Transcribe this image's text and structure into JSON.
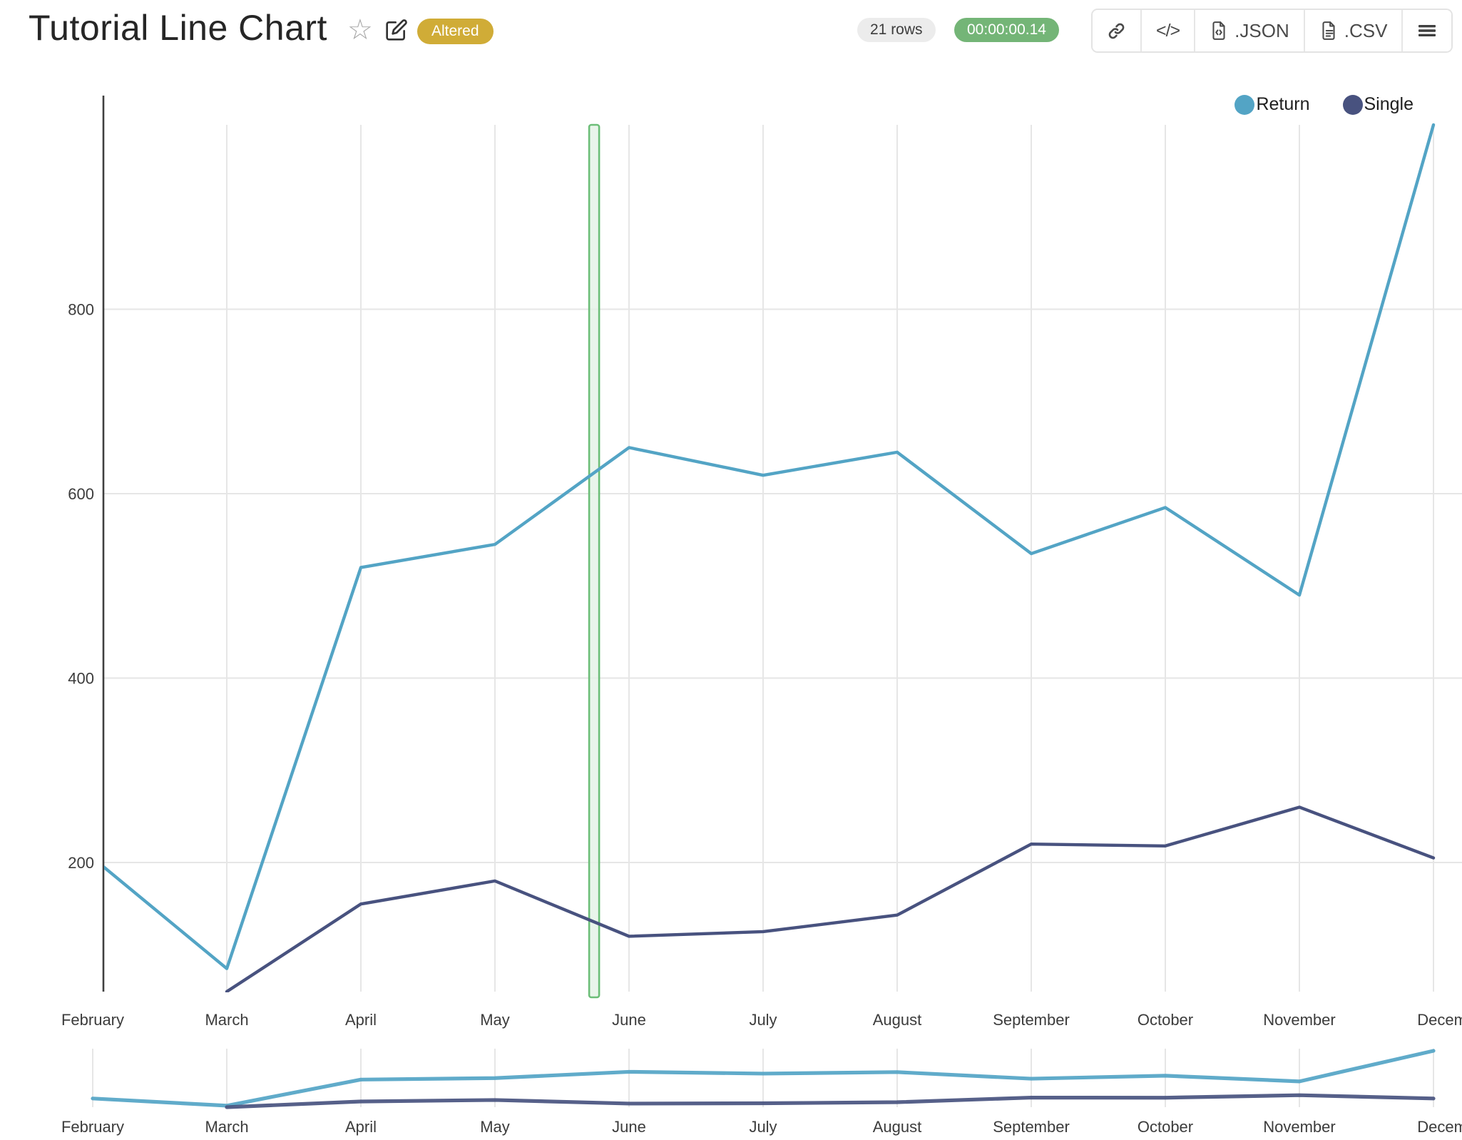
{
  "header": {
    "title": "Tutorial Line Chart",
    "badge": "Altered",
    "badge_color": "#d0ac37",
    "rows_pill": "21 rows",
    "timer_pill": "00:00:00.14",
    "timer_pill_color": "#74b577",
    "export_json_label": ".JSON",
    "export_csv_label": ".CSV"
  },
  "legend": {
    "position": "top-right",
    "items": [
      {
        "label": "Return",
        "color": "#53a4c5"
      },
      {
        "label": "Single",
        "color": "#48527f"
      }
    ]
  },
  "chart_data": {
    "type": "line",
    "title": "Tutorial Line Chart",
    "categories": [
      "February",
      "March",
      "April",
      "May",
      "June",
      "July",
      "August",
      "September",
      "October",
      "November",
      "December"
    ],
    "series": [
      {
        "name": "Return",
        "color": "#53a4c5",
        "values": [
          205,
          85,
          520,
          545,
          650,
          620,
          645,
          535,
          585,
          490,
          1000
        ]
      },
      {
        "name": "Single",
        "color": "#48527f",
        "values": [
          null,
          60,
          155,
          180,
          120,
          125,
          143,
          220,
          218,
          260,
          205
        ]
      }
    ],
    "ylabel": "",
    "xlabel": "",
    "yticks": [
      200,
      400,
      600,
      800
    ],
    "ylim": [
      60,
      1000
    ],
    "grid": true,
    "legend_position": "top-right",
    "selection_band": {
      "x_index_position": 3.74,
      "stroke": "#6cbe78",
      "fill": "#e4f2e6"
    },
    "has_range_slider": true,
    "total_rows": 21
  }
}
